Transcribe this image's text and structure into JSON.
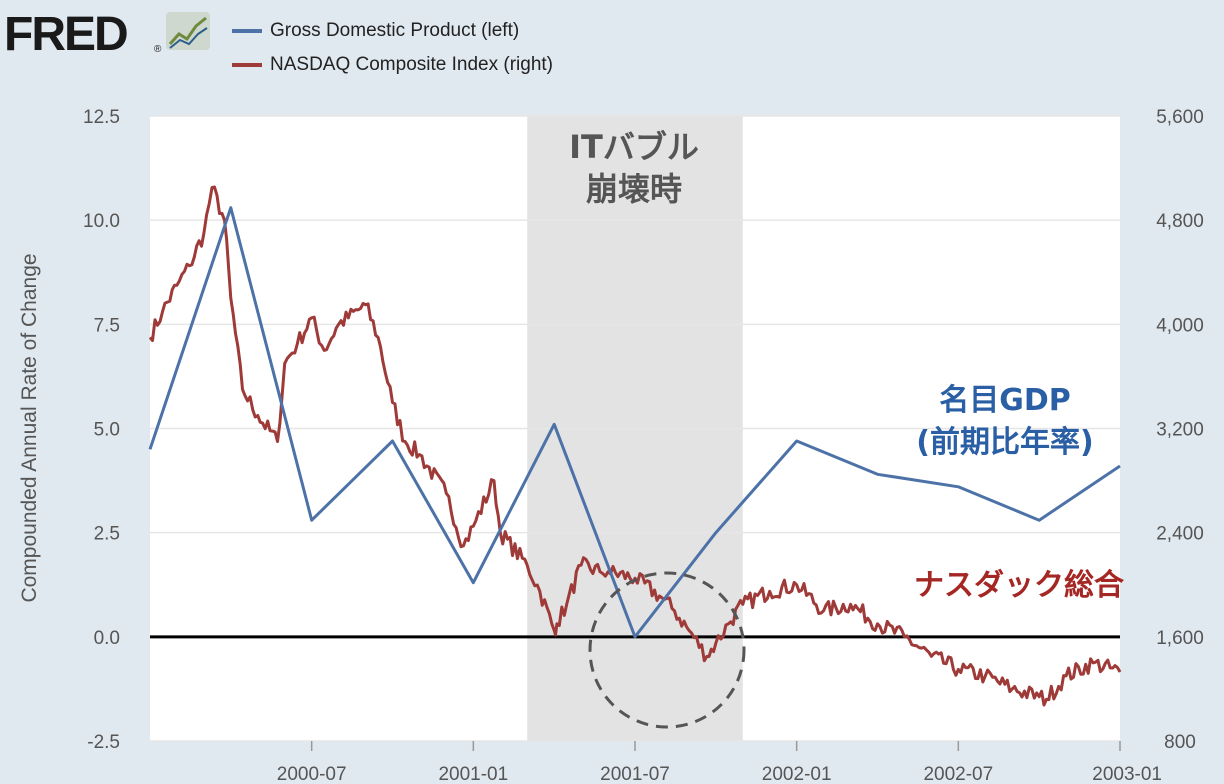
{
  "logo": {
    "text": "FRED",
    "registered": "®"
  },
  "colors": {
    "gdp": "#4c72a8",
    "nasdaq": "#9e3a38",
    "recession": "#e3e3e3",
    "background": "#e1e9f0",
    "plot": "#ffffff",
    "gdp_anno": "#2a5ea5",
    "nasdaq_anno": "#a52723",
    "circle": "#555555"
  },
  "annotations": {
    "recession_line1": "ITバブル",
    "recession_line2": "崩壊時",
    "gdp_line1": "名目GDP",
    "gdp_line2": "(前期比年率)",
    "nasdaq": "ナスダック総合"
  },
  "chart_data": {
    "type": "line",
    "title": "",
    "ylabel": "Compounded Annual Rate of Change",
    "ylim": [
      -2.5,
      12.5
    ],
    "ylim_right": [
      800,
      5600
    ],
    "xlim": [
      "2000-01",
      "2003-01"
    ],
    "grid": true,
    "legend_position": "top-left",
    "x_ticks": [
      "2000-07",
      "2001-01",
      "2001-07",
      "2002-01",
      "2002-07",
      "2003-01"
    ],
    "y_ticks_left": [
      "12.5",
      "10.0",
      "7.5",
      "5.0",
      "2.5",
      "0.0",
      "-2.5"
    ],
    "y_ticks_right": [
      "5,600",
      "4,800",
      "4,000",
      "3,200",
      "2,400",
      "1,600",
      "800"
    ],
    "recession_band": [
      "2001-03",
      "2001-11"
    ],
    "series": [
      {
        "name": "Gross Domestic Product (left)",
        "axis": "left",
        "x": [
          "2000-01",
          "2000-04",
          "2000-07",
          "2000-10",
          "2001-01",
          "2001-04",
          "2001-07",
          "2001-10",
          "2002-01",
          "2002-04",
          "2002-07",
          "2002-10",
          "2003-01"
        ],
        "values": [
          4.5,
          10.3,
          2.8,
          4.7,
          1.3,
          5.1,
          0.0,
          2.5,
          4.7,
          3.9,
          3.6,
          2.8,
          4.1
        ]
      },
      {
        "name": "NASDAQ Composite Index (right)",
        "axis": "right",
        "x": [
          "2000-01",
          "2000-01-15",
          "2000-02",
          "2000-02-15",
          "2000-03",
          "2000-03-10",
          "2000-03-24",
          "2000-04",
          "2000-04-14",
          "2000-05",
          "2000-05-23",
          "2000-06",
          "2000-06-15",
          "2000-07",
          "2000-07-15",
          "2000-08",
          "2000-09",
          "2000-09-15",
          "2000-10",
          "2000-10-15",
          "2000-11",
          "2000-12",
          "2000-12-20",
          "2001-01",
          "2001-01-24",
          "2001-02",
          "2001-03",
          "2001-03-15",
          "2001-04",
          "2001-04-04",
          "2001-04-15",
          "2001-05",
          "2001-05-22",
          "2001-06",
          "2001-07",
          "2001-08",
          "2001-08-15",
          "2001-09",
          "2001-09-21",
          "2001-10",
          "2001-10-15",
          "2001-11",
          "2001-12",
          "2002-01",
          "2002-02",
          "2002-03",
          "2002-04",
          "2002-05",
          "2002-06",
          "2002-07",
          "2002-08",
          "2002-09",
          "2002-10",
          "2002-10-09",
          "2002-11",
          "2002-12",
          "2003-01"
        ],
        "values": [
          3900,
          4100,
          4300,
          4450,
          4700,
          5050,
          4800,
          4200,
          3500,
          3300,
          3100,
          3700,
          3850,
          4050,
          3800,
          4000,
          4150,
          3900,
          3400,
          3100,
          3000,
          2700,
          2300,
          2450,
          2800,
          2400,
          2150,
          1950,
          1650,
          1700,
          1850,
          2150,
          2100,
          2100,
          2050,
          1900,
          1800,
          1650,
          1450,
          1550,
          1700,
          1850,
          1950,
          2000,
          1800,
          1850,
          1700,
          1600,
          1450,
          1350,
          1300,
          1200,
          1140,
          1120,
          1300,
          1400,
          1330
        ]
      }
    ]
  }
}
